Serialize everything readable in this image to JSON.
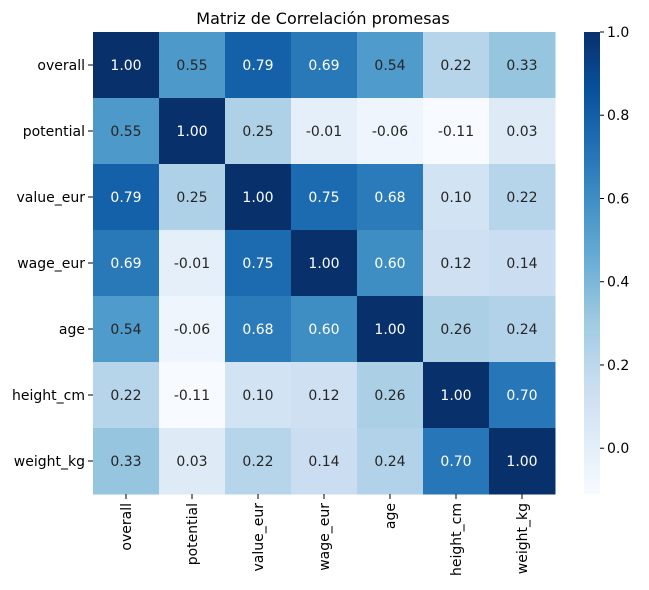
{
  "chart_data": {
    "type": "heatmap",
    "title": "Matriz de Correlación promesas",
    "xlabel": "",
    "ylabel": "",
    "row_labels": [
      "overall",
      "potential",
      "value_eur",
      "wage_eur",
      "age",
      "height_cm",
      "weight_kg"
    ],
    "col_labels": [
      "overall",
      "potential",
      "value_eur",
      "wage_eur",
      "age",
      "height_cm",
      "weight_kg"
    ],
    "values": [
      [
        1.0,
        0.55,
        0.79,
        0.69,
        0.54,
        0.22,
        0.33
      ],
      [
        0.55,
        1.0,
        0.25,
        -0.01,
        -0.06,
        -0.11,
        0.03
      ],
      [
        0.79,
        0.25,
        1.0,
        0.75,
        0.68,
        0.1,
        0.22
      ],
      [
        0.69,
        -0.01,
        0.75,
        1.0,
        0.6,
        0.12,
        0.14
      ],
      [
        0.54,
        -0.06,
        0.68,
        0.6,
        1.0,
        0.26,
        0.24
      ],
      [
        0.22,
        -0.11,
        0.1,
        0.12,
        0.26,
        1.0,
        0.7
      ],
      [
        0.33,
        0.03,
        0.22,
        0.14,
        0.24,
        0.7,
        1.0
      ]
    ],
    "value_labels": [
      [
        "1.00",
        "0.55",
        "0.79",
        "0.69",
        "0.54",
        "0.22",
        "0.33"
      ],
      [
        "0.55",
        "1.00",
        "0.25",
        "-0.01",
        "-0.06",
        "-0.11",
        "0.03"
      ],
      [
        "0.79",
        "0.25",
        "1.00",
        "0.75",
        "0.68",
        "0.10",
        "0.22"
      ],
      [
        "0.69",
        "-0.01",
        "0.75",
        "1.00",
        "0.60",
        "0.12",
        "0.14"
      ],
      [
        "0.54",
        "-0.06",
        "0.68",
        "0.60",
        "1.00",
        "0.26",
        "0.24"
      ],
      [
        "0.22",
        "-0.11",
        "0.10",
        "0.12",
        "0.26",
        "1.00",
        "0.70"
      ],
      [
        "0.33",
        "0.03",
        "0.22",
        "0.14",
        "0.24",
        "0.70",
        "1.00"
      ]
    ],
    "colormap": "Blues",
    "colormap_stops": [
      "#f7fbff",
      "#deebf7",
      "#c6dbef",
      "#9ecae1",
      "#6baed6",
      "#4292c6",
      "#2171b5",
      "#08519c",
      "#08306b"
    ],
    "vmin": -0.11,
    "vmax": 1.0,
    "colorbar_ticks": [
      0.0,
      0.2,
      0.4,
      0.6,
      0.8,
      1.0
    ],
    "colorbar_tick_labels": [
      "0.0",
      "0.2",
      "0.4",
      "0.6",
      "0.8",
      "1.0"
    ],
    "annotation_color_dark": "#262626",
    "annotation_color_light": "#ffffff",
    "legend": "colorbar-right",
    "grid": false
  }
}
